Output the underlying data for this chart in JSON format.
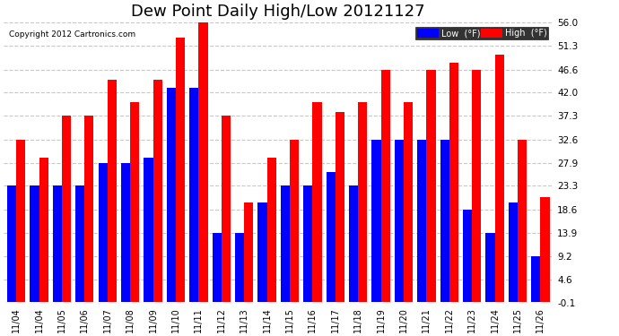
{
  "title": "Dew Point Daily High/Low 20121127",
  "copyright": "Copyright 2012 Cartronics.com",
  "categories": [
    "11/04",
    "11/04",
    "11/05",
    "11/06",
    "11/07",
    "11/08",
    "11/09",
    "11/10",
    "11/11",
    "11/12",
    "11/13",
    "11/14",
    "11/15",
    "11/16",
    "11/17",
    "11/18",
    "11/19",
    "11/20",
    "11/21",
    "11/22",
    "11/23",
    "11/24",
    "11/25",
    "11/26"
  ],
  "low_values": [
    23.3,
    23.3,
    23.3,
    23.3,
    27.9,
    27.9,
    29.0,
    43.0,
    43.0,
    13.9,
    13.9,
    20.0,
    23.3,
    23.3,
    26.0,
    23.3,
    32.6,
    32.6,
    32.6,
    32.6,
    18.6,
    13.9,
    20.0,
    9.2
  ],
  "high_values": [
    32.6,
    29.0,
    37.3,
    37.3,
    44.6,
    40.0,
    44.6,
    53.0,
    57.0,
    37.3,
    20.0,
    29.0,
    32.6,
    40.0,
    38.0,
    40.0,
    46.6,
    40.0,
    46.6,
    48.0,
    46.6,
    49.5,
    32.6,
    21.0
  ],
  "ylim": [
    -0.1,
    56.0
  ],
  "yticks": [
    -0.1,
    4.6,
    9.2,
    13.9,
    18.6,
    23.3,
    27.9,
    32.6,
    37.3,
    42.0,
    46.6,
    51.3,
    56.0
  ],
  "ytick_labels": [
    "-0.1",
    "4.6",
    "9.2",
    "13.9",
    "18.6",
    "23.3",
    "27.9",
    "32.6",
    "37.3",
    "42.0",
    "46.6",
    "51.3",
    "56.0"
  ],
  "low_color": "#0000ff",
  "high_color": "#ff0000",
  "bg_color": "#ffffff",
  "grid_color": "#c8c8c8",
  "title_fontsize": 13
}
